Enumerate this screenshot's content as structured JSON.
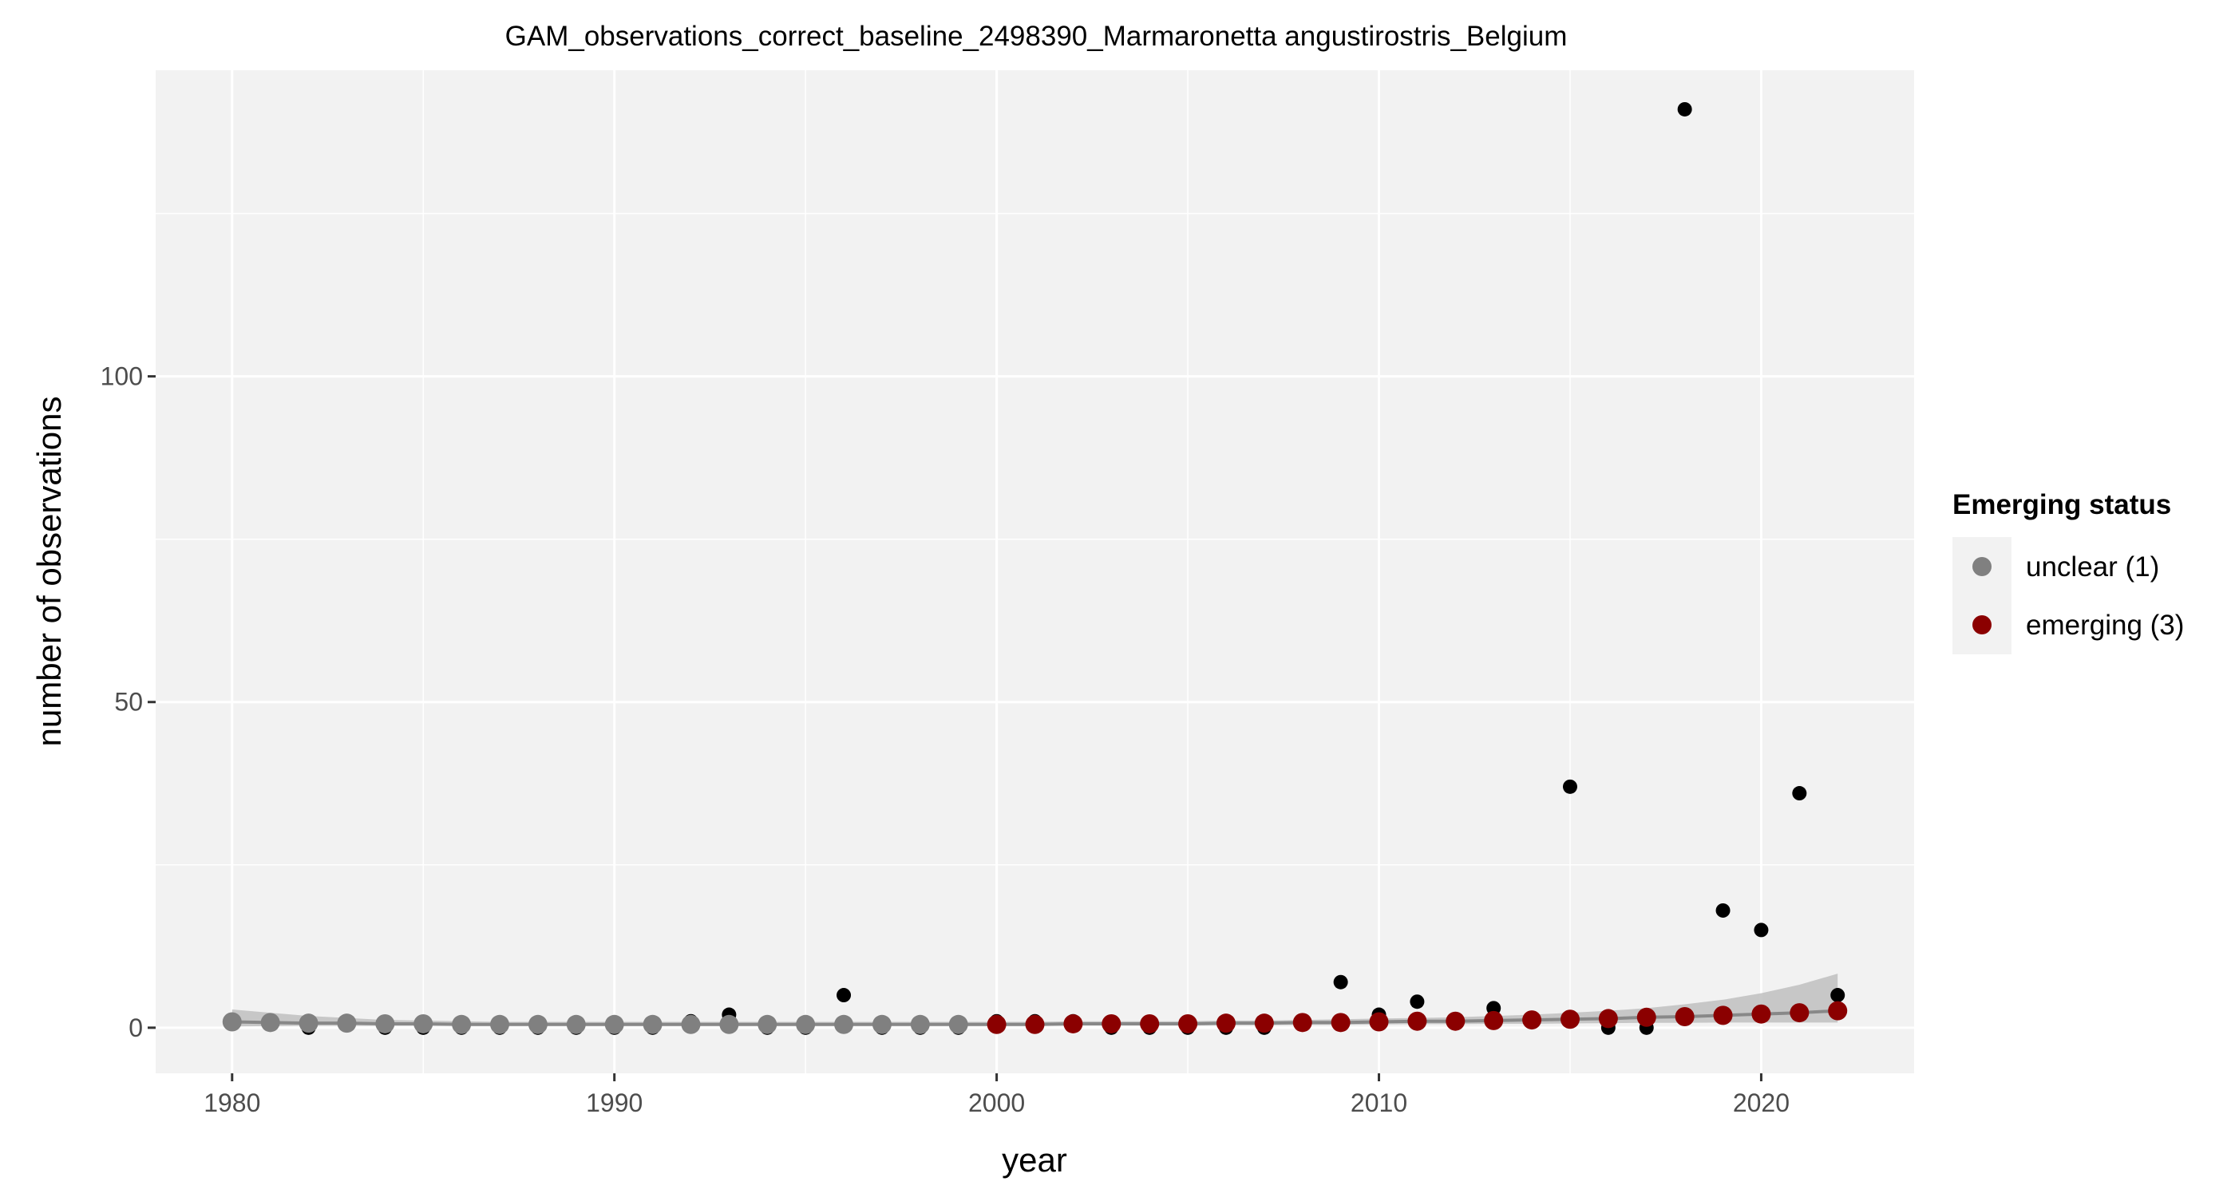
{
  "chart_data": {
    "type": "scatter",
    "title": "GAM_observations_correct_baseline_2498390_Marmaronetta angustirostris_Belgium",
    "xlabel": "year",
    "ylabel": "number of observations",
    "xlim": [
      1978,
      2024
    ],
    "ylim": [
      -7,
      147
    ],
    "x_ticks": [
      1980,
      1990,
      2000,
      2010,
      2020
    ],
    "y_ticks": [
      0,
      50,
      100
    ],
    "grid": true,
    "legend": {
      "title": "Emerging status",
      "placement": "right",
      "entries": [
        {
          "label": "unclear (1)",
          "color": "#808080"
        },
        {
          "label": "emerging (3)",
          "color": "#8b0000"
        }
      ]
    },
    "colors": {
      "panel_background": "#f2f2f2",
      "grid": "#ffffff",
      "observations": "#000000",
      "fit_line": "#888888",
      "confidence_band": "#bfbfbf",
      "unclear": "#808080",
      "emerging": "#8b0000"
    },
    "observations": {
      "x": [
        1980,
        1981,
        1982,
        1983,
        1984,
        1985,
        1986,
        1987,
        1988,
        1989,
        1990,
        1991,
        1992,
        1993,
        1994,
        1995,
        1996,
        1997,
        1998,
        1999,
        2000,
        2001,
        2002,
        2003,
        2004,
        2005,
        2006,
        2007,
        2008,
        2009,
        2010,
        2011,
        2012,
        2013,
        2014,
        2015,
        2016,
        2017,
        2018,
        2019,
        2020,
        2021,
        2022
      ],
      "y": [
        1,
        1,
        0,
        1,
        0,
        0,
        0,
        0,
        0,
        0,
        0,
        0,
        1,
        2,
        0,
        0,
        5,
        0,
        0,
        0,
        1,
        1,
        1,
        0,
        0,
        0,
        0,
        0,
        1,
        7,
        2,
        4,
        1,
        3,
        1,
        37,
        0,
        0,
        141,
        18,
        15,
        36,
        5
      ]
    },
    "fit": {
      "x": [
        1980,
        1981,
        1982,
        1983,
        1984,
        1985,
        1986,
        1987,
        1988,
        1989,
        1990,
        1991,
        1992,
        1993,
        1994,
        1995,
        1996,
        1997,
        1998,
        1999,
        2000,
        2001,
        2002,
        2003,
        2004,
        2005,
        2006,
        2007,
        2008,
        2009,
        2010,
        2011,
        2012,
        2013,
        2014,
        2015,
        2016,
        2017,
        2018,
        2019,
        2020,
        2021,
        2022
      ],
      "y": [
        0.9,
        0.8,
        0.7,
        0.7,
        0.6,
        0.6,
        0.5,
        0.5,
        0.5,
        0.5,
        0.5,
        0.5,
        0.5,
        0.5,
        0.5,
        0.5,
        0.5,
        0.5,
        0.5,
        0.5,
        0.5,
        0.5,
        0.6,
        0.6,
        0.6,
        0.6,
        0.7,
        0.7,
        0.8,
        0.8,
        0.9,
        1.0,
        1.0,
        1.1,
        1.2,
        1.3,
        1.4,
        1.6,
        1.7,
        1.9,
        2.1,
        2.3,
        2.6
      ],
      "lower": [
        0.2,
        0.25,
        0.3,
        0.3,
        0.3,
        0.3,
        0.3,
        0.3,
        0.3,
        0.3,
        0.3,
        0.3,
        0.3,
        0.3,
        0.3,
        0.3,
        0.3,
        0.3,
        0.3,
        0.3,
        0.3,
        0.3,
        0.35,
        0.35,
        0.35,
        0.35,
        0.4,
        0.4,
        0.45,
        0.45,
        0.5,
        0.55,
        0.55,
        0.6,
        0.6,
        0.65,
        0.7,
        0.75,
        0.75,
        0.8,
        0.8,
        0.8,
        0.8
      ],
      "upper": [
        2.8,
        2.3,
        1.8,
        1.5,
        1.2,
        1.1,
        1.0,
        0.9,
        0.9,
        0.9,
        0.9,
        0.9,
        0.9,
        0.9,
        0.9,
        0.9,
        0.9,
        0.9,
        0.9,
        0.9,
        0.9,
        0.9,
        1.0,
        1.0,
        1.0,
        1.0,
        1.1,
        1.1,
        1.2,
        1.3,
        1.4,
        1.5,
        1.6,
        1.8,
        2.0,
        2.3,
        2.6,
        3.0,
        3.6,
        4.3,
        5.3,
        6.6,
        8.3
      ],
      "status": [
        "unclear",
        "unclear",
        "unclear",
        "unclear",
        "unclear",
        "unclear",
        "unclear",
        "unclear",
        "unclear",
        "unclear",
        "unclear",
        "unclear",
        "unclear",
        "unclear",
        "unclear",
        "unclear",
        "unclear",
        "unclear",
        "unclear",
        "unclear",
        "emerging",
        "emerging",
        "emerging",
        "emerging",
        "emerging",
        "emerging",
        "emerging",
        "emerging",
        "emerging",
        "emerging",
        "emerging",
        "emerging",
        "emerging",
        "emerging",
        "emerging",
        "emerging",
        "emerging",
        "emerging",
        "emerging",
        "emerging",
        "emerging",
        "emerging",
        "emerging"
      ]
    }
  }
}
